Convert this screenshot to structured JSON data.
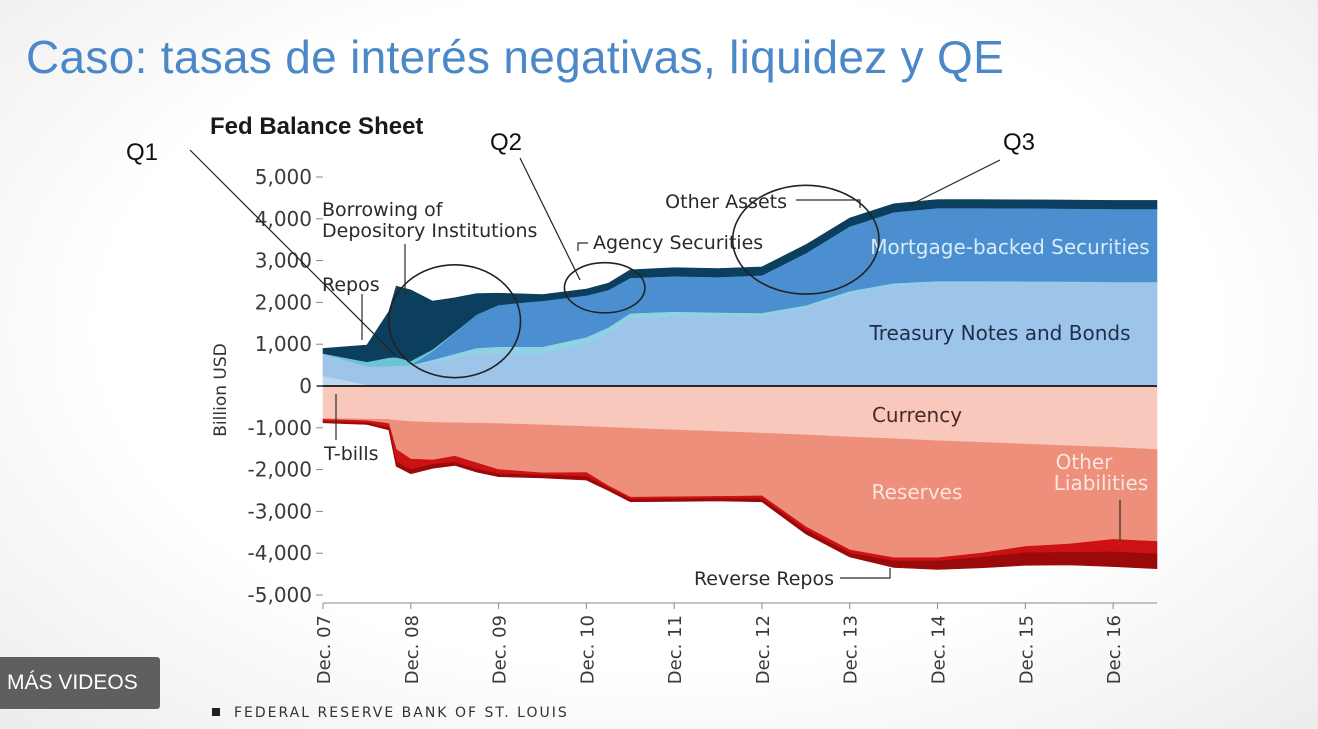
{
  "slide": {
    "title": "Caso: tasas de interés negativas, liquidez y QE",
    "more_videos_label": "MÁS VIDEOS",
    "source_label": "FEDERAL RESERVE BANK OF ST. LOUIS"
  },
  "colors": {
    "title": "#4a88c8",
    "other_assets": "#0c3e5e",
    "mbs": "#4b8fd1",
    "agency": "#8fd3e3",
    "treasuries": "#9dc5ea",
    "tbills": "#bcd7ef",
    "repos": "#6cc3d4",
    "currency": "#f8c8bd",
    "reserves": "#ee8f7b",
    "other_liabilities": "#cc1212",
    "reverse_repos": "#9a0a0a",
    "oval": "#222222"
  },
  "chart_data": {
    "type": "area",
    "title": "Fed Balance Sheet",
    "ylabel": "Billion USD",
    "xlabel": "",
    "ylim": [
      -5000,
      5000
    ],
    "yticks": [
      5000,
      4000,
      3000,
      2000,
      1000,
      0,
      -1000,
      -2000,
      -3000,
      -4000,
      -5000
    ],
    "ytick_labels": [
      "5,000",
      "4,000",
      "3,000",
      "2,000",
      "1,000",
      "0",
      "-1,000",
      "-2,000",
      "-3,000",
      "-4,000",
      "-5,000"
    ],
    "xlim": [
      "2007-12",
      "2017-06"
    ],
    "xticks": [
      "2007-12",
      "2008-12",
      "2009-12",
      "2010-12",
      "2011-12",
      "2012-12",
      "2013-12",
      "2014-12",
      "2015-12",
      "2016-12"
    ],
    "xtick_labels": [
      "Dec. 07",
      "Dec. 08",
      "Dec. 09",
      "Dec. 10",
      "Dec. 11",
      "Dec. 12",
      "Dec. 13",
      "Dec. 14",
      "Dec. 15",
      "Dec. 16"
    ],
    "x": [
      "2007-12",
      "2008-06",
      "2008-09",
      "2008-10",
      "2008-12",
      "2009-03",
      "2009-06",
      "2009-09",
      "2009-12",
      "2010-06",
      "2010-12",
      "2011-03",
      "2011-06",
      "2011-12",
      "2012-06",
      "2012-12",
      "2013-06",
      "2013-12",
      "2014-06",
      "2014-12",
      "2015-06",
      "2015-12",
      "2016-06",
      "2016-12",
      "2017-06"
    ],
    "series": [
      {
        "name": "T-bills",
        "side": "assets",
        "color_key": "tbills",
        "values": [
          250,
          30,
          20,
          20,
          20,
          20,
          20,
          20,
          20,
          20,
          20,
          20,
          20,
          20,
          20,
          20,
          20,
          20,
          20,
          20,
          20,
          20,
          20,
          20,
          20
        ]
      },
      {
        "name": "Treasury Notes and Bonds",
        "side": "assets",
        "color_key": "treasuries",
        "values": [
          530,
          450,
          460,
          460,
          460,
          550,
          650,
          760,
          760,
          760,
          1000,
          1250,
          1600,
          1650,
          1650,
          1650,
          1850,
          2200,
          2400,
          2450,
          2450,
          2450,
          2450,
          2450,
          2450
        ]
      },
      {
        "name": "Agency Securities",
        "side": "assets",
        "color_key": "agency",
        "values": [
          0,
          0,
          0,
          10,
          20,
          60,
          100,
          130,
          160,
          160,
          150,
          130,
          120,
          110,
          90,
          80,
          60,
          50,
          40,
          40,
          40,
          35,
          30,
          20,
          20
        ]
      },
      {
        "name": "Mortgage-backed Securities",
        "side": "assets",
        "color_key": "mbs",
        "values": [
          0,
          0,
          0,
          0,
          0,
          200,
          500,
          800,
          1000,
          1100,
          1000,
          900,
          850,
          850,
          850,
          900,
          1250,
          1550,
          1700,
          1750,
          1750,
          1750,
          1750,
          1750,
          1750
        ]
      },
      {
        "name": "Repos",
        "side": "assets",
        "color_key": "repos",
        "values": [
          0,
          100,
          200,
          200,
          100,
          50,
          20,
          0,
          0,
          0,
          0,
          0,
          0,
          0,
          0,
          0,
          0,
          0,
          0,
          0,
          0,
          0,
          0,
          0,
          0
        ]
      },
      {
        "name": "Borrowing of Depository Institutions",
        "side": "assets",
        "color_key": "other_assets",
        "values": [
          0,
          150,
          400,
          700,
          600,
          300,
          100,
          50,
          20,
          0,
          0,
          0,
          0,
          0,
          0,
          0,
          0,
          0,
          0,
          0,
          0,
          0,
          0,
          0,
          0
        ]
      },
      {
        "name": "Other Assets",
        "side": "assets",
        "color_key": "other_assets",
        "values": [
          120,
          250,
          700,
          1000,
          1100,
          850,
          720,
          450,
          260,
          150,
          150,
          160,
          190,
          200,
          200,
          200,
          200,
          200,
          200,
          200,
          200,
          200,
          200,
          200,
          200
        ]
      },
      {
        "name": "Currency",
        "side": "liabilities",
        "color_key": "currency",
        "values": [
          -780,
          -790,
          -800,
          -820,
          -850,
          -870,
          -880,
          -890,
          -900,
          -930,
          -970,
          -990,
          -1010,
          -1050,
          -1090,
          -1130,
          -1170,
          -1220,
          -1260,
          -1310,
          -1350,
          -1390,
          -1430,
          -1470,
          -1520
        ]
      },
      {
        "name": "Reserves",
        "side": "liabilities",
        "color_key": "reserves",
        "values": [
          -20,
          -40,
          -100,
          -700,
          -900,
          -900,
          -800,
          -950,
          -1100,
          -1150,
          -1100,
          -1400,
          -1650,
          -1600,
          -1550,
          -1500,
          -2200,
          -2700,
          -2850,
          -2800,
          -2650,
          -2450,
          -2350,
          -2200,
          -2200
        ]
      },
      {
        "name": "Other Liabilities",
        "side": "liabilities",
        "color_key": "other_liabilities",
        "values": [
          -50,
          -50,
          -100,
          -300,
          -250,
          -100,
          -150,
          -150,
          -100,
          -50,
          -100,
          -50,
          -50,
          -50,
          -50,
          -70,
          -80,
          -80,
          -80,
          -80,
          -100,
          -150,
          -200,
          -300,
          -300
        ]
      },
      {
        "name": "Reverse Repos",
        "side": "liabilities",
        "color_key": "reverse_repos",
        "values": [
          -30,
          -40,
          -50,
          -100,
          -100,
          -100,
          -70,
          -70,
          -70,
          -70,
          -80,
          -60,
          -60,
          -60,
          -60,
          -70,
          -90,
          -90,
          -150,
          -200,
          -250,
          -300,
          -300,
          -350,
          -350
        ]
      }
    ],
    "area_labels": [
      {
        "text": "Mortgage-backed Securities",
        "color": "#d9ecfa"
      },
      {
        "text": "Treasury Notes and Bonds",
        "color": "#1f2e4a"
      },
      {
        "text": "Currency",
        "color": "#4a2a28"
      },
      {
        "text": "Reserves",
        "color": "#fbe6e0"
      },
      {
        "text": "Other",
        "color": "#fbe6e0"
      },
      {
        "text": "Liabilities",
        "color": "#fbe6e0"
      }
    ],
    "annotations": [
      {
        "text": "Borrowing of",
        "points_to": "Borrowing of Depository Institutions"
      },
      {
        "text": "Depository Institutions",
        "points_to": "Borrowing of Depository Institutions"
      },
      {
        "text": "Repos",
        "points_to": "Repos"
      },
      {
        "text": "Agency Securities",
        "points_to": "Agency Securities"
      },
      {
        "text": "Other Assets",
        "points_to": "Other Assets"
      },
      {
        "text": "T-bills",
        "points_to": "T-bills"
      },
      {
        "text": "Reverse Repos",
        "points_to": "Reverse Repos"
      }
    ],
    "highlights": [
      {
        "label": "Q1",
        "x_range": [
          "2008-09",
          "2010-03"
        ],
        "y_range": [
          200,
          2900
        ]
      },
      {
        "label": "Q2",
        "x_range": [
          "2010-09",
          "2011-08"
        ],
        "y_range": [
          1750,
          2950
        ]
      },
      {
        "label": "Q3",
        "x_range": [
          "2012-08",
          "2014-04"
        ],
        "y_range": [
          2200,
          4800
        ]
      }
    ],
    "grid": false,
    "legend": "none"
  }
}
